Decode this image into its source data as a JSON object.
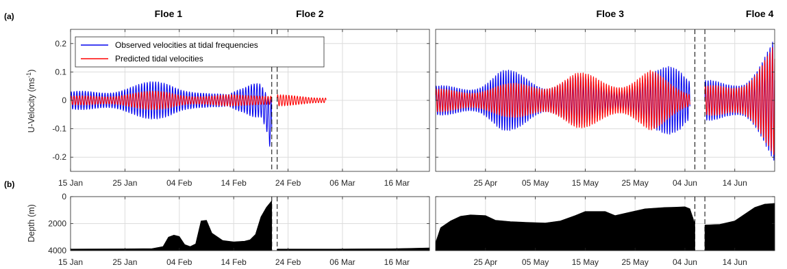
{
  "panel_labels": {
    "a": "(a)",
    "b": "(b)"
  },
  "floe_labels": [
    {
      "text": "Floe 1",
      "date": "2015-02-02"
    },
    {
      "text": "Floe 2",
      "date": "2015-02-28"
    },
    {
      "text": "Floe 3",
      "date": "2015-05-20"
    },
    {
      "text": "Floe 4",
      "date": "2015-06-19"
    }
  ],
  "chart_data": [
    {
      "type": "line",
      "panel": "(a)",
      "ylabel_main": "U-Velocity (ms",
      "ylabel_sup": "-1",
      "ylabel_close": ")",
      "ylim": [
        -0.25,
        0.25
      ],
      "yticks": [
        -0.2,
        -0.1,
        0,
        0.1,
        0.2
      ],
      "ytick_labels": [
        "-0.2",
        "-0.1",
        "0",
        "0.1",
        "0.2"
      ],
      "xlim_left": [
        "2015-01-15",
        "2015-03-22"
      ],
      "xlim_right": [
        "2015-04-15",
        "2015-06-22"
      ],
      "xticks_left": [
        "2015-01-15",
        "2015-01-25",
        "2015-02-04",
        "2015-02-14",
        "2015-02-24",
        "2015-03-06",
        "2015-03-16"
      ],
      "xtick_labels_left": [
        "15 Jan",
        "25 Jan",
        "04 Feb",
        "14 Feb",
        "24 Feb",
        "06 Mar",
        "16 Mar"
      ],
      "xticks_right": [
        "2015-04-25",
        "2015-05-05",
        "2015-05-15",
        "2015-05-25",
        "2015-06-04",
        "2015-06-14"
      ],
      "xtick_labels_right": [
        "25 Apr",
        "05 May",
        "15 May",
        "25 May",
        "04 Jun",
        "14 Jun"
      ],
      "grid": true,
      "legend_position": "top-left",
      "floe_boundaries": [
        "2015-02-21",
        "2015-02-22",
        "2015-06-06",
        "2015-06-08"
      ],
      "series": [
        {
          "name": "Observed velocities at tidal frequencies",
          "color": "#0000ee",
          "segments": [
            {
              "start": "2015-01-15",
              "end": "2015-02-21",
              "period_hours": 12.42,
              "envelope": [
                [
                  "2015-01-15",
                  0.03
                ],
                [
                  "2015-01-25",
                  0.06
                ],
                [
                  "2015-02-02",
                  0.07
                ],
                [
                  "2015-02-06",
                  0.06
                ],
                [
                  "2015-02-10",
                  0.03
                ],
                [
                  "2015-02-13",
                  0.02
                ],
                [
                  "2015-02-16",
                  0.05
                ],
                [
                  "2015-02-18",
                  0.09
                ],
                [
                  "2015-02-19",
                  0.1
                ],
                [
                  "2015-02-20",
                  0.12
                ],
                [
                  "2015-02-21",
                  0.2
                ]
              ],
              "offset": [
                [
                  "2015-01-15",
                  0
                ],
                [
                  "2015-02-19",
                  0
                ],
                [
                  "2015-02-20",
                  -0.04
                ],
                [
                  "2015-02-21",
                  -0.1
                ]
              ]
            },
            {
              "start": "2015-04-15",
              "end": "2015-06-05",
              "period_hours": 12.42,
              "envelope": [
                [
                  "2015-04-15",
                  0.05
                ],
                [
                  "2015-04-24",
                  0.08
                ],
                [
                  "2015-04-28",
                  0.11
                ],
                [
                  "2015-05-03",
                  0.1
                ],
                [
                  "2015-05-07",
                  0.08
                ],
                [
                  "2015-05-13",
                  0.09
                ],
                [
                  "2015-05-17",
                  0.07
                ],
                [
                  "2015-05-21",
                  0.06
                ],
                [
                  "2015-05-26",
                  0.08
                ],
                [
                  "2015-05-30",
                  0.11
                ],
                [
                  "2015-06-01",
                  0.14
                ],
                [
                  "2015-06-03",
                  0.16
                ],
                [
                  "2015-06-05",
                  0.13
                ]
              ],
              "offset": [
                [
                  "2015-04-15",
                  0
                ],
                [
                  "2015-06-05",
                  0
                ]
              ]
            },
            {
              "start": "2015-06-08",
              "end": "2015-06-22",
              "period_hours": 12.42,
              "envelope": [
                [
                  "2015-06-08",
                  0.07
                ],
                [
                  "2015-06-12",
                  0.08
                ],
                [
                  "2015-06-16",
                  0.11
                ],
                [
                  "2015-06-19",
                  0.16
                ],
                [
                  "2015-06-22",
                  0.22
                ]
              ],
              "offset": [
                [
                  "2015-06-08",
                  0
                ],
                [
                  "2015-06-22",
                  0
                ]
              ]
            }
          ]
        },
        {
          "name": "Predicted tidal velocities",
          "color": "#ff0000",
          "segments": [
            {
              "start": "2015-01-15",
              "end": "2015-02-21",
              "period_hours": 12.42,
              "envelope": [
                [
                  "2015-01-15",
                  0.015
                ],
                [
                  "2015-01-25",
                  0.03
                ],
                [
                  "2015-02-02",
                  0.035
                ],
                [
                  "2015-02-10",
                  0.02
                ],
                [
                  "2015-02-16",
                  0.02
                ],
                [
                  "2015-02-21",
                  0.03
                ]
              ],
              "offset": [
                [
                  "2015-01-15",
                  0
                ],
                [
                  "2015-02-21",
                  0
                ]
              ]
            },
            {
              "start": "2015-02-22",
              "end": "2015-03-03",
              "period_hours": 12.42,
              "envelope": [
                [
                  "2015-02-22",
                  0.02
                ],
                [
                  "2015-02-27",
                  0.02
                ],
                [
                  "2015-03-03",
                  0.015
                ]
              ],
              "offset": [
                [
                  "2015-02-22",
                  0
                ],
                [
                  "2015-03-03",
                  0
                ]
              ]
            },
            {
              "start": "2015-04-15",
              "end": "2015-06-05",
              "period_hours": 12.42,
              "envelope": [
                [
                  "2015-04-15",
                  0.04
                ],
                [
                  "2015-04-22",
                  0.05
                ],
                [
                  "2015-04-30",
                  0.06
                ],
                [
                  "2015-05-07",
                  0.08
                ],
                [
                  "2015-05-13",
                  0.1
                ],
                [
                  "2015-05-18",
                  0.09
                ],
                [
                  "2015-05-23",
                  0.09
                ],
                [
                  "2015-05-28",
                  0.11
                ],
                [
                  "2015-06-01",
                  0.07
                ],
                [
                  "2015-06-05",
                  0.04
                ]
              ],
              "offset": [
                [
                  "2015-04-15",
                  0
                ],
                [
                  "2015-06-05",
                  0
                ]
              ]
            },
            {
              "start": "2015-06-08",
              "end": "2015-06-22",
              "period_hours": 12.42,
              "envelope": [
                [
                  "2015-06-08",
                  0.05
                ],
                [
                  "2015-06-13",
                  0.07
                ],
                [
                  "2015-06-16",
                  0.1
                ],
                [
                  "2015-06-19",
                  0.15
                ],
                [
                  "2015-06-22",
                  0.2
                ]
              ],
              "offset": [
                [
                  "2015-06-08",
                  0
                ],
                [
                  "2015-06-22",
                  0
                ]
              ]
            }
          ]
        }
      ]
    },
    {
      "type": "area",
      "panel": "(b)",
      "ylabel": "Depth (m)",
      "ylim": [
        0,
        4000
      ],
      "y_reversed": true,
      "yticks": [
        0,
        2000,
        4000
      ],
      "ytick_labels": [
        "0",
        "2000",
        "4000"
      ],
      "xlim_left": [
        "2015-01-15",
        "2015-03-22"
      ],
      "xlim_right": [
        "2015-04-15",
        "2015-06-22"
      ],
      "xticks_left": [
        "2015-01-15",
        "2015-01-25",
        "2015-02-04",
        "2015-02-14",
        "2015-02-24",
        "2015-03-06",
        "2015-03-16"
      ],
      "xtick_labels_left": [
        "15 Jan",
        "25 Jan",
        "04 Feb",
        "14 Feb",
        "24 Feb",
        "06 Mar",
        "16 Mar"
      ],
      "xticks_right": [
        "2015-04-25",
        "2015-05-05",
        "2015-05-15",
        "2015-05-25",
        "2015-06-04",
        "2015-06-14"
      ],
      "xtick_labels_right": [
        "25 Apr",
        "05 May",
        "15 May",
        "25 May",
        "04 Jun",
        "14 Jun"
      ],
      "grid": true,
      "floe_boundaries": [
        "2015-02-21",
        "2015-02-22",
        "2015-06-06",
        "2015-06-08"
      ],
      "series": [
        {
          "name": "",
          "color": "#000000",
          "segments": [
            {
              "points": [
                [
                  "2015-01-15",
                  3880
                ],
                [
                  "2015-01-25",
                  3870
                ],
                [
                  "2015-01-30",
                  3850
                ],
                [
                  "2015-02-01",
                  3700
                ],
                [
                  "2015-02-02",
                  3000
                ],
                [
                  "2015-02-03",
                  2850
                ],
                [
                  "2015-02-04",
                  2950
                ],
                [
                  "2015-02-05",
                  3550
                ],
                [
                  "2015-02-06",
                  3700
                ],
                [
                  "2015-02-07",
                  3500
                ],
                [
                  "2015-02-08",
                  1800
                ],
                [
                  "2015-02-09",
                  1750
                ],
                [
                  "2015-02-10",
                  2700
                ],
                [
                  "2015-02-12",
                  3250
                ],
                [
                  "2015-02-14",
                  3350
                ],
                [
                  "2015-02-16",
                  3300
                ],
                [
                  "2015-02-17",
                  3200
                ],
                [
                  "2015-02-18",
                  2800
                ],
                [
                  "2015-02-19",
                  1500
                ],
                [
                  "2015-02-20",
                  800
                ],
                [
                  "2015-02-21",
                  300
                ]
              ]
            },
            {
              "points": [
                [
                  "2015-02-22",
                  3880
                ],
                [
                  "2015-03-05",
                  3880
                ],
                [
                  "2015-03-15",
                  3860
                ],
                [
                  "2015-03-22",
                  3800
                ]
              ]
            },
            {
              "points": [
                [
                  "2015-04-15",
                  3400
                ],
                [
                  "2015-04-16",
                  2300
                ],
                [
                  "2015-04-18",
                  1800
                ],
                [
                  "2015-04-20",
                  1450
                ],
                [
                  "2015-04-22",
                  1350
                ],
                [
                  "2015-04-25",
                  1400
                ],
                [
                  "2015-04-27",
                  1750
                ],
                [
                  "2015-04-30",
                  1850
                ],
                [
                  "2015-05-03",
                  1900
                ],
                [
                  "2015-05-07",
                  1950
                ],
                [
                  "2015-05-10",
                  1800
                ],
                [
                  "2015-05-13",
                  1400
                ],
                [
                  "2015-05-15",
                  1100
                ],
                [
                  "2015-05-19",
                  1100
                ],
                [
                  "2015-05-21",
                  1400
                ],
                [
                  "2015-05-24",
                  1150
                ],
                [
                  "2015-05-27",
                  900
                ],
                [
                  "2015-05-31",
                  800
                ],
                [
                  "2015-06-02",
                  780
                ],
                [
                  "2015-06-04",
                  750
                ],
                [
                  "2015-06-05",
                  900
                ],
                [
                  "2015-06-06",
                  2000
                ]
              ]
            },
            {
              "points": [
                [
                  "2015-06-08",
                  2100
                ],
                [
                  "2015-06-11",
                  2050
                ],
                [
                  "2015-06-14",
                  1800
                ],
                [
                  "2015-06-16",
                  1300
                ],
                [
                  "2015-06-18",
                  800
                ],
                [
                  "2015-06-20",
                  550
                ],
                [
                  "2015-06-22",
                  500
                ]
              ]
            }
          ]
        }
      ]
    }
  ]
}
